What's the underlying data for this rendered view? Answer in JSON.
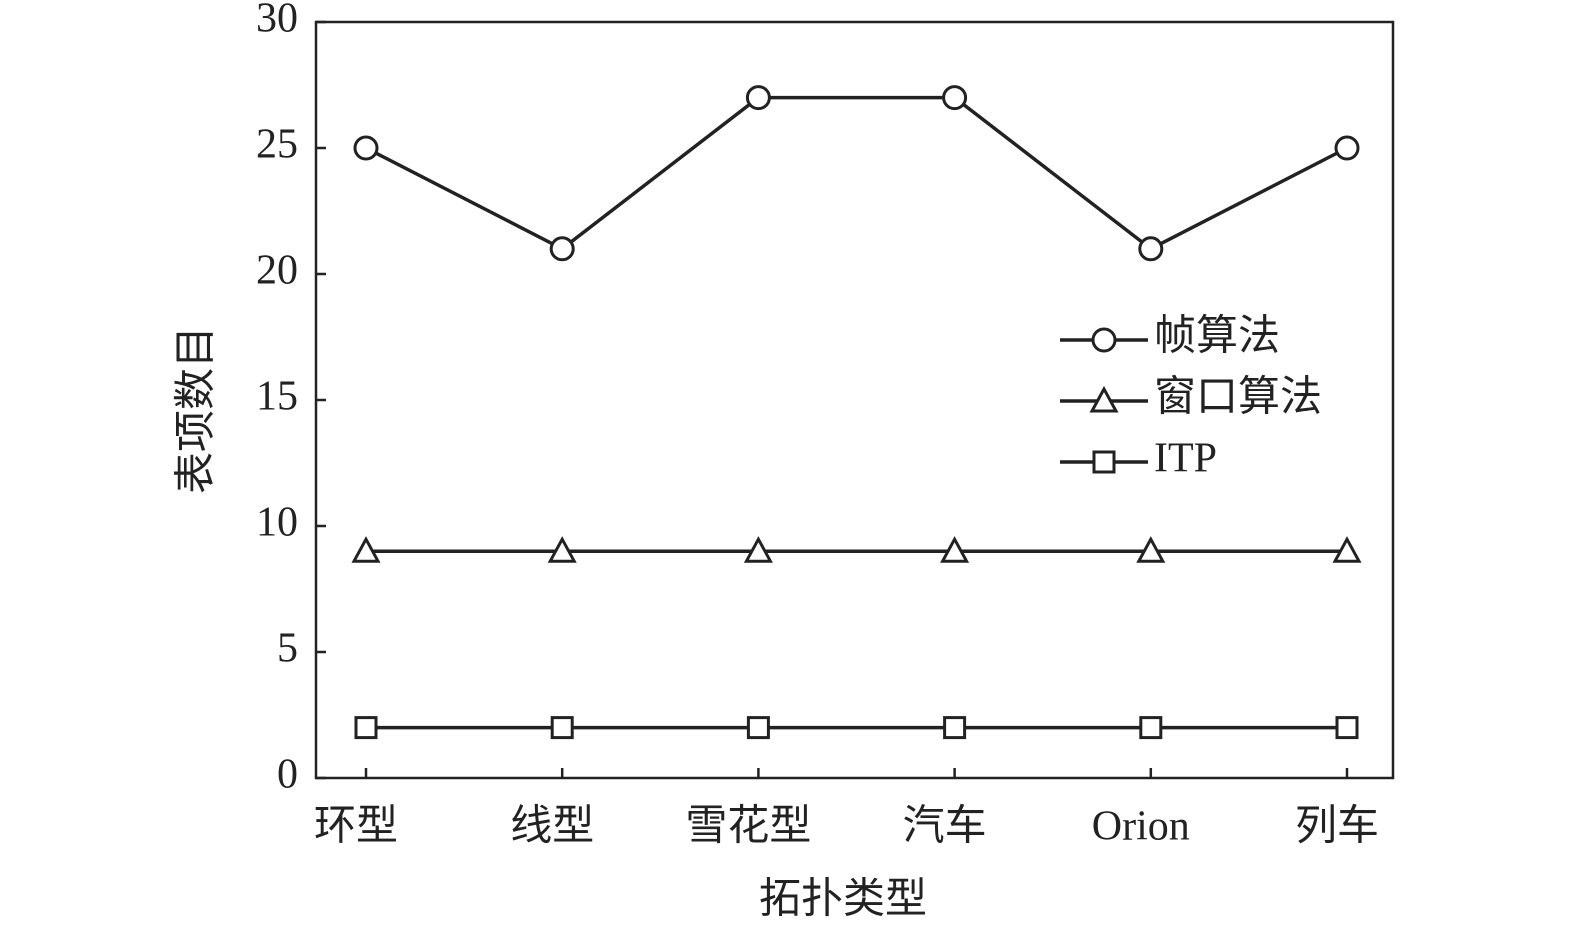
{
  "chart_data": {
    "type": "line",
    "x_label": "拓扑类型",
    "y_label": "表项数目",
    "categories": [
      "环型",
      "线型",
      "雪花型",
      "汽车",
      "Orion",
      "列车"
    ],
    "series": [
      {
        "name": "帧算法",
        "color": "#222222",
        "marker": "circle",
        "values": [
          25,
          21,
          27,
          27,
          21,
          25
        ]
      },
      {
        "name": "窗口算法",
        "color": "#222222",
        "marker": "triangle",
        "values": [
          9,
          9,
          9,
          9,
          9,
          9
        ]
      },
      {
        "name": "ITP",
        "color": "#222222",
        "marker": "square",
        "values": [
          2,
          2,
          2,
          2,
          2,
          2
        ]
      }
    ],
    "ylim": [
      0,
      30
    ],
    "yticks": [
      0,
      5,
      10,
      15,
      20,
      25,
      30
    ],
    "grid": false,
    "legend": "right"
  }
}
